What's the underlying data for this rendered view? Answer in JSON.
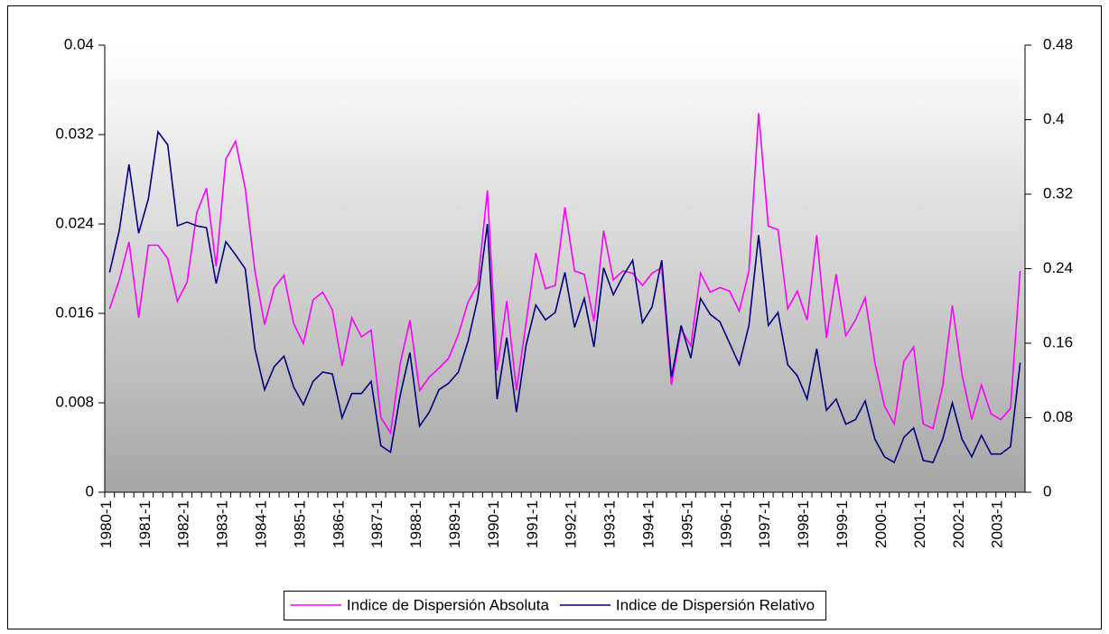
{
  "chart_data": {
    "type": "line",
    "categories": [
      "1980-1",
      null,
      null,
      null,
      "1981-1",
      null,
      null,
      null,
      "1982-1",
      null,
      null,
      null,
      "1983-1",
      null,
      null,
      null,
      "1984-1",
      null,
      null,
      null,
      "1985-1",
      null,
      null,
      null,
      "1986-1",
      null,
      null,
      null,
      "1987-1",
      null,
      null,
      null,
      "1988-1",
      null,
      null,
      null,
      "1989-1",
      null,
      null,
      null,
      "1990-1",
      null,
      null,
      null,
      "1991-1",
      null,
      null,
      null,
      "1992-1",
      null,
      null,
      null,
      "1993-1",
      null,
      null,
      null,
      "1994-1",
      null,
      null,
      null,
      "1995-1",
      null,
      null,
      null,
      "1996-1",
      null,
      null,
      null,
      "1997-1",
      null,
      null,
      null,
      "1998-1",
      null,
      null,
      null,
      "1999-1",
      null,
      null,
      null,
      "2000-1",
      null,
      null,
      null,
      "2001-1",
      null,
      null,
      null,
      "2002-1",
      null,
      null,
      null,
      "2003-1",
      null,
      null
    ],
    "series": [
      {
        "name": "Indice de Dispersión Absoluta",
        "color": "#ff00ff",
        "axis": "y",
        "values": [
          0.0164,
          0.019,
          0.0224,
          0.0156,
          0.0221,
          0.0221,
          0.0209,
          0.0171,
          0.0188,
          0.025,
          0.0272,
          0.0202,
          0.0298,
          0.0314,
          0.0272,
          0.0198,
          0.015,
          0.0183,
          0.0194,
          0.0151,
          0.0133,
          0.0172,
          0.0179,
          0.0163,
          0.0113,
          0.0156,
          0.0139,
          0.0145,
          0.0067,
          0.0053,
          0.0115,
          0.0154,
          0.0091,
          0.0103,
          0.0111,
          0.012,
          0.0141,
          0.017,
          0.0186,
          0.027,
          0.0109,
          0.0171,
          0.0091,
          0.0152,
          0.0214,
          0.0182,
          0.0185,
          0.0255,
          0.0198,
          0.0195,
          0.0153,
          0.0234,
          0.019,
          0.0198,
          0.0196,
          0.0185,
          0.0196,
          0.0201,
          0.0096,
          0.0146,
          0.0131,
          0.0196,
          0.0179,
          0.0183,
          0.018,
          0.0162,
          0.0198,
          0.0339,
          0.0238,
          0.0235,
          0.0164,
          0.018,
          0.0154,
          0.023,
          0.0138,
          0.0195,
          0.014,
          0.0154,
          0.0174,
          0.0116,
          0.0077,
          0.0061,
          0.0117,
          0.013,
          0.0061,
          0.0057,
          0.0095,
          0.0167,
          0.0105,
          0.0065,
          0.0096,
          0.007,
          0.0065,
          0.0075,
          0.0198
        ]
      },
      {
        "name": "Indice de Dispersión Relativo",
        "color": "#000080",
        "axis": "y2",
        "values": [
          0.236,
          0.281,
          0.352,
          0.278,
          0.315,
          0.387,
          0.373,
          0.286,
          0.29,
          0.286,
          0.284,
          0.224,
          0.269,
          0.255,
          0.24,
          0.154,
          0.11,
          0.135,
          0.146,
          0.113,
          0.094,
          0.119,
          0.129,
          0.127,
          0.08,
          0.106,
          0.106,
          0.119,
          0.05,
          0.043,
          0.104,
          0.15,
          0.071,
          0.086,
          0.11,
          0.117,
          0.129,
          0.162,
          0.208,
          0.288,
          0.1,
          0.166,
          0.086,
          0.158,
          0.201,
          0.185,
          0.193,
          0.236,
          0.177,
          0.208,
          0.156,
          0.241,
          0.212,
          0.232,
          0.249,
          0.182,
          0.199,
          0.249,
          0.123,
          0.179,
          0.144,
          0.208,
          0.191,
          0.183,
          0.16,
          0.137,
          0.179,
          0.276,
          0.179,
          0.193,
          0.137,
          0.125,
          0.1,
          0.154,
          0.088,
          0.1,
          0.073,
          0.078,
          0.098,
          0.057,
          0.038,
          0.032,
          0.059,
          0.069,
          0.034,
          0.032,
          0.057,
          0.096,
          0.057,
          0.038,
          0.061,
          0.041,
          0.041,
          0.049,
          0.139
        ]
      }
    ],
    "ylim": [
      0,
      0.04
    ],
    "yticks": [
      0,
      0.008,
      0.016,
      0.024,
      0.032,
      0.04
    ],
    "y2lim": [
      0,
      0.48
    ],
    "y2ticks": [
      0,
      0.08,
      0.16,
      0.24,
      0.32,
      0.4,
      0.48
    ],
    "legend": "bottom"
  }
}
